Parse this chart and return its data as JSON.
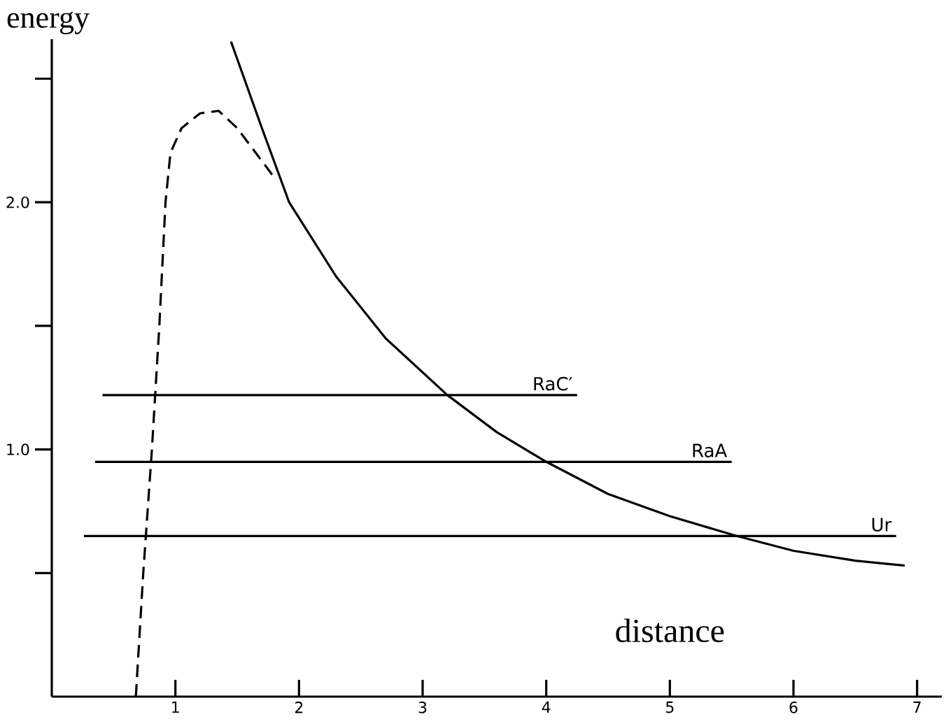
{
  "chart_data": {
    "type": "line",
    "xlabel": "distance",
    "ylabel": "energy",
    "xlim": [
      0,
      7.2
    ],
    "ylim": [
      0,
      2.66
    ],
    "xticks": [
      1,
      2,
      3,
      4,
      5,
      6,
      7
    ],
    "yticks": [
      {
        "value": 0.5,
        "label": null
      },
      {
        "value": 1.0,
        "label": "1.0"
      },
      {
        "value": 1.5,
        "label": null
      },
      {
        "value": 2.0,
        "label": "2.0"
      },
      {
        "value": 2.5,
        "label": null
      }
    ],
    "marker": "none",
    "series": [
      {
        "color": "#000000",
        "line_style": "dashed",
        "x": [
          0.68,
          0.74,
          0.81,
          0.87,
          0.92,
          0.96,
          1.05,
          1.2,
          1.35,
          1.5,
          1.65,
          1.8
        ],
        "values": [
          0,
          0.5,
          1.0,
          1.5,
          2.0,
          2.2,
          2.3,
          2.36,
          2.37,
          2.3,
          2.2,
          2.1
        ]
      },
      {
        "color": "#000000",
        "line_style": "solid",
        "x": [
          1.45,
          1.7,
          1.92,
          2.3,
          2.7,
          3.2,
          3.6,
          4.0,
          4.5,
          5.0,
          5.54,
          6.0,
          6.5,
          6.9
        ],
        "values": [
          2.65,
          2.3,
          2.0,
          1.7,
          1.45,
          1.22,
          1.07,
          0.95,
          0.82,
          0.73,
          0.65,
          0.59,
          0.55,
          0.53
        ]
      },
      {
        "name": "RaC′",
        "color": "#000000",
        "line_style": "solid",
        "x": [
          0.41,
          4.25
        ],
        "values": [
          1.22,
          1.22
        ]
      },
      {
        "name": "RaA",
        "color": "#000000",
        "line_style": "solid",
        "x": [
          0.35,
          5.5
        ],
        "values": [
          0.95,
          0.95
        ]
      },
      {
        "name": "Ur",
        "color": "#000000",
        "line_style": "solid",
        "x": [
          0.26,
          6.83
        ],
        "values": [
          0.65,
          0.65
        ]
      }
    ]
  }
}
